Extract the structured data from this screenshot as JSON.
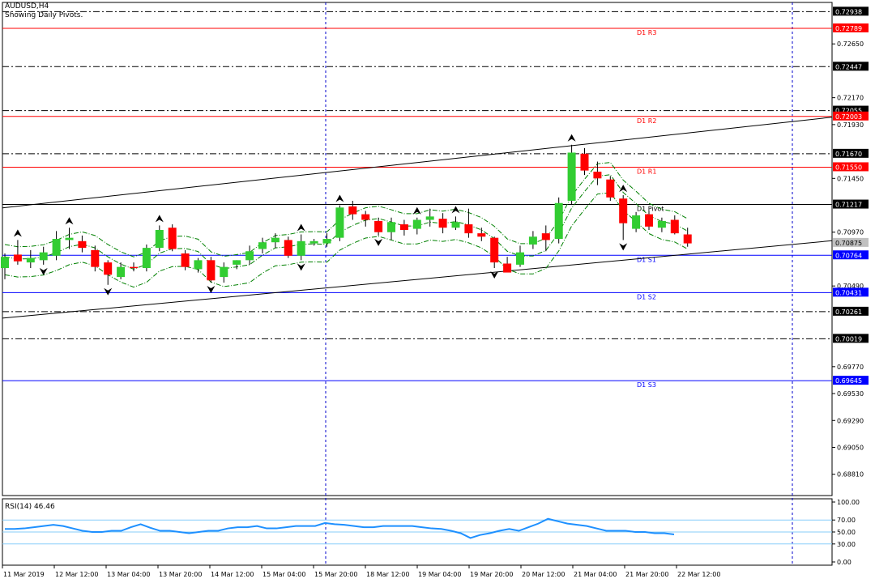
{
  "header": {
    "symbol": "AUDUSD,H4",
    "indicator": "Showing Daily Pivots."
  },
  "rsi": {
    "label": "RSI(14) 46.46",
    "ticks": [
      "100.00",
      "70.00",
      "50.00",
      "30.00",
      "0.00"
    ],
    "values": [
      55,
      55,
      56,
      58,
      60,
      62,
      60,
      56,
      52,
      50,
      50,
      52,
      52,
      58,
      63,
      57,
      52,
      52,
      50,
      48,
      50,
      52,
      52,
      56,
      58,
      58,
      60,
      56,
      56,
      58,
      60,
      60,
      60,
      65,
      63,
      62,
      60,
      58,
      58,
      60,
      60,
      60,
      60,
      58,
      56,
      55,
      52,
      48,
      40,
      45,
      48,
      52,
      55,
      52,
      58,
      64,
      72,
      68,
      64,
      62,
      60,
      56,
      52,
      52,
      52,
      50,
      50,
      48,
      48,
      46
    ]
  },
  "time_axis": [
    "11 Mar 2019",
    "12 Mar 12:00",
    "13 Mar 04:00",
    "13 Mar 20:00",
    "14 Mar 12:00",
    "15 Mar 04:00",
    "15 Mar 20:00",
    "18 Mar 12:00",
    "19 Mar 04:00",
    "19 Mar 20:00",
    "20 Mar 12:00",
    "21 Mar 04:00",
    "21 Mar 20:00",
    "22 Mar 12:00"
  ],
  "price_ticks": [
    "0.72650",
    "0.72170",
    "0.71930",
    "0.71450",
    "0.70970",
    "0.70490",
    "0.69770",
    "0.69530",
    "0.69290",
    "0.69050",
    "0.68810"
  ],
  "level_labels": [
    {
      "text": "0.72938",
      "bg": "#000000"
    },
    {
      "text": "0.72789",
      "bg": "#ff0000"
    },
    {
      "text": "0.72447",
      "bg": "#000000"
    },
    {
      "text": "0.72055",
      "bg": "#000000"
    },
    {
      "text": "0.72003",
      "bg": "#ff0000"
    },
    {
      "text": "0.71670",
      "bg": "#000000"
    },
    {
      "text": "0.71550",
      "bg": "#ff0000"
    },
    {
      "text": "0.71217",
      "bg": "#000000"
    },
    {
      "text": "0.70875",
      "bg": "#c0c0c0"
    },
    {
      "text": "0.70764",
      "bg": "#0000ff"
    },
    {
      "text": "0.70431",
      "bg": "#0000ff"
    },
    {
      "text": "0.70261",
      "bg": "#000000"
    },
    {
      "text": "0.70019",
      "bg": "#000000"
    },
    {
      "text": "0.69645",
      "bg": "#0000ff"
    }
  ],
  "pivots": [
    {
      "label": "D1  R3",
      "price": 0.72789,
      "color": "#ff0000"
    },
    {
      "label": "D1  R2",
      "price": 0.72003,
      "color": "#ff0000"
    },
    {
      "label": "D1  R1",
      "price": 0.7155,
      "color": "#ff0000"
    },
    {
      "label": "D1  Pivot",
      "price": 0.71217,
      "color": "#000000"
    },
    {
      "label": "D1  S1",
      "price": 0.70764,
      "color": "#0000ff"
    },
    {
      "label": "D1  S2",
      "price": 0.70431,
      "color": "#0000ff"
    },
    {
      "label": "D1  S3",
      "price": 0.69645,
      "color": "#0000ff"
    }
  ],
  "dashed_levels": [
    0.72938,
    0.72447,
    0.72055,
    0.7167,
    0.70261,
    0.70019
  ],
  "colors": {
    "bull": "#32cd32",
    "bear": "#ff0000",
    "ma": "#008000",
    "trend": "#000000",
    "rsi": "#1e90ff",
    "grid": "#0000cd"
  },
  "chart_data": {
    "type": "candlestick",
    "symbol": "AUDUSD",
    "timeframe": "H4",
    "y_range": [
      0.6862,
      0.7302
    ],
    "candles": [
      {
        "o": 0.7065,
        "h": 0.7078,
        "l": 0.7055,
        "c": 0.7075
      },
      {
        "o": 0.7077,
        "h": 0.709,
        "l": 0.7068,
        "c": 0.7071
      },
      {
        "o": 0.707,
        "h": 0.7081,
        "l": 0.7065,
        "c": 0.7074
      },
      {
        "o": 0.7072,
        "h": 0.7084,
        "l": 0.7068,
        "c": 0.7079
      },
      {
        "o": 0.7076,
        "h": 0.7098,
        "l": 0.7072,
        "c": 0.7091
      },
      {
        "o": 0.709,
        "h": 0.7101,
        "l": 0.7082,
        "c": 0.7092
      },
      {
        "o": 0.7089,
        "h": 0.7094,
        "l": 0.7079,
        "c": 0.7083
      },
      {
        "o": 0.7081,
        "h": 0.7085,
        "l": 0.7062,
        "c": 0.7066
      },
      {
        "o": 0.707,
        "h": 0.7072,
        "l": 0.705,
        "c": 0.7059
      },
      {
        "o": 0.7057,
        "h": 0.707,
        "l": 0.7055,
        "c": 0.7066
      },
      {
        "o": 0.7066,
        "h": 0.707,
        "l": 0.7062,
        "c": 0.7065
      },
      {
        "o": 0.7065,
        "h": 0.7086,
        "l": 0.7062,
        "c": 0.7083
      },
      {
        "o": 0.7083,
        "h": 0.7103,
        "l": 0.708,
        "c": 0.7099
      },
      {
        "o": 0.7101,
        "h": 0.7104,
        "l": 0.708,
        "c": 0.7082
      },
      {
        "o": 0.7078,
        "h": 0.7081,
        "l": 0.7063,
        "c": 0.7066
      },
      {
        "o": 0.7064,
        "h": 0.7074,
        "l": 0.7061,
        "c": 0.7072
      },
      {
        "o": 0.7072,
        "h": 0.7075,
        "l": 0.7052,
        "c": 0.7054
      },
      {
        "o": 0.7057,
        "h": 0.707,
        "l": 0.7052,
        "c": 0.7066
      },
      {
        "o": 0.7068,
        "h": 0.7072,
        "l": 0.7064,
        "c": 0.7072
      },
      {
        "o": 0.7072,
        "h": 0.7085,
        "l": 0.7068,
        "c": 0.708
      },
      {
        "o": 0.7082,
        "h": 0.7092,
        "l": 0.7078,
        "c": 0.7088
      },
      {
        "o": 0.7088,
        "h": 0.7096,
        "l": 0.7083,
        "c": 0.7092
      },
      {
        "o": 0.709,
        "h": 0.7093,
        "l": 0.7074,
        "c": 0.7076
      },
      {
        "o": 0.7076,
        "h": 0.7095,
        "l": 0.7072,
        "c": 0.7089
      },
      {
        "o": 0.7087,
        "h": 0.7091,
        "l": 0.7085,
        "c": 0.7089
      },
      {
        "o": 0.7087,
        "h": 0.7096,
        "l": 0.7084,
        "c": 0.7091
      },
      {
        "o": 0.7092,
        "h": 0.7121,
        "l": 0.7089,
        "c": 0.7119
      },
      {
        "o": 0.712,
        "h": 0.7125,
        "l": 0.7108,
        "c": 0.7113
      },
      {
        "o": 0.7113,
        "h": 0.7116,
        "l": 0.7102,
        "c": 0.7108
      },
      {
        "o": 0.7107,
        "h": 0.711,
        "l": 0.7094,
        "c": 0.7097
      },
      {
        "o": 0.7097,
        "h": 0.711,
        "l": 0.709,
        "c": 0.7106
      },
      {
        "o": 0.7104,
        "h": 0.7108,
        "l": 0.7094,
        "c": 0.7099
      },
      {
        "o": 0.71,
        "h": 0.711,
        "l": 0.7095,
        "c": 0.7108
      },
      {
        "o": 0.7108,
        "h": 0.7118,
        "l": 0.7102,
        "c": 0.7111
      },
      {
        "o": 0.7109,
        "h": 0.7114,
        "l": 0.7096,
        "c": 0.7101
      },
      {
        "o": 0.7101,
        "h": 0.7111,
        "l": 0.7099,
        "c": 0.7106
      },
      {
        "o": 0.7104,
        "h": 0.7118,
        "l": 0.7092,
        "c": 0.7096
      },
      {
        "o": 0.7096,
        "h": 0.7101,
        "l": 0.7089,
        "c": 0.7093
      },
      {
        "o": 0.7092,
        "h": 0.7093,
        "l": 0.7065,
        "c": 0.707
      },
      {
        "o": 0.7069,
        "h": 0.7075,
        "l": 0.7062,
        "c": 0.7061
      },
      {
        "o": 0.7068,
        "h": 0.7085,
        "l": 0.7066,
        "c": 0.7079
      },
      {
        "o": 0.7086,
        "h": 0.7098,
        "l": 0.7082,
        "c": 0.7093
      },
      {
        "o": 0.7096,
        "h": 0.7103,
        "l": 0.708,
        "c": 0.709
      },
      {
        "o": 0.7091,
        "h": 0.7128,
        "l": 0.7087,
        "c": 0.7123
      },
      {
        "o": 0.7125,
        "h": 0.7175,
        "l": 0.7122,
        "c": 0.7168
      },
      {
        "o": 0.7167,
        "h": 0.7172,
        "l": 0.7148,
        "c": 0.7152
      },
      {
        "o": 0.7151,
        "h": 0.716,
        "l": 0.7139,
        "c": 0.7145
      },
      {
        "o": 0.7144,
        "h": 0.7147,
        "l": 0.7125,
        "c": 0.7128
      },
      {
        "o": 0.7127,
        "h": 0.713,
        "l": 0.709,
        "c": 0.7105
      },
      {
        "o": 0.71,
        "h": 0.7115,
        "l": 0.7097,
        "c": 0.7112
      },
      {
        "o": 0.7113,
        "h": 0.7116,
        "l": 0.7099,
        "c": 0.7102
      },
      {
        "o": 0.7101,
        "h": 0.711,
        "l": 0.7097,
        "c": 0.7107
      },
      {
        "o": 0.7108,
        "h": 0.7112,
        "l": 0.7095,
        "c": 0.7096
      },
      {
        "o": 0.7095,
        "h": 0.7101,
        "l": 0.7084,
        "c": 0.7087
      }
    ]
  }
}
